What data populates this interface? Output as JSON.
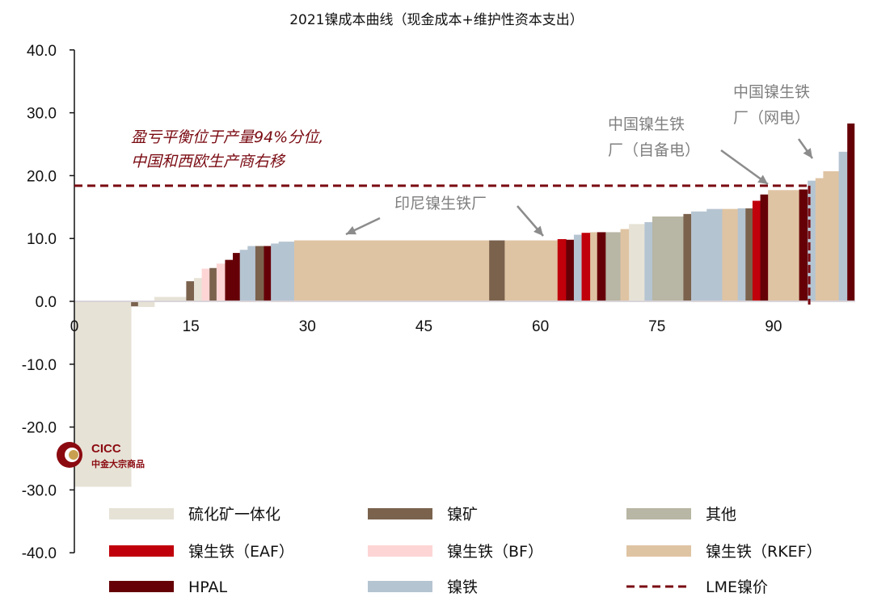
{
  "chart_data": {
    "type": "bar",
    "subtype": "variable-width cost curve",
    "title": "2021镍成本曲线（现金成本+维护性资本支出）",
    "xlim": [
      0,
      100.5
    ],
    "ylim": [
      -40,
      40
    ],
    "x_ticks": [
      "0",
      "15",
      "30",
      "45",
      "60",
      "75",
      "90"
    ],
    "x_tick_values": [
      0,
      15,
      30,
      45,
      60,
      75,
      90
    ],
    "y_ticks": [
      "40.0",
      "30.0",
      "20.0",
      "10.0",
      "0.0",
      "-10.0",
      "-20.0",
      "-30.0",
      "-40.0"
    ],
    "y_tick_values": [
      40,
      30,
      20,
      10,
      0,
      -10,
      -20,
      -30,
      -40
    ],
    "grid": false,
    "legend_placement": "bottom",
    "categories": {
      "sulfide": {
        "label": "硫化矿一体化",
        "color": "#e6e2d6"
      },
      "ore": {
        "label": "镍矿",
        "color": "#7a624d"
      },
      "other": {
        "label": "其他",
        "color": "#b8b6a4"
      },
      "eaf": {
        "label": "镍生铁（EAF）",
        "color": "#c0000b"
      },
      "bf": {
        "label": "镍生铁（BF）",
        "color": "#fdd5d5"
      },
      "rkef": {
        "label": "镍生铁（RKEF）",
        "color": "#dfc4a3"
      },
      "hpal": {
        "label": "HPAL",
        "color": "#660007"
      },
      "fe": {
        "label": "镍铁",
        "color": "#b5c4d1"
      }
    },
    "legend_order": [
      "sulfide",
      "ore",
      "other",
      "eaf",
      "bf",
      "rkef",
      "hpal",
      "fe",
      "lme"
    ],
    "lme": {
      "label": "LME镍价",
      "value": 18.4,
      "color": "#7a0a12"
    },
    "breakeven_percentile": 94,
    "bars": [
      [
        0,
        7.3,
        -29.5,
        "sulfide"
      ],
      [
        7.3,
        8.2,
        -0.8,
        "ore"
      ],
      [
        8.2,
        10.3,
        -0.9,
        "sulfide"
      ],
      [
        10.3,
        14.4,
        0.7,
        "sulfide"
      ],
      [
        14.4,
        15.4,
        3.2,
        "ore"
      ],
      [
        15.4,
        16.4,
        3.7,
        "sulfide"
      ],
      [
        16.4,
        17.4,
        5.2,
        "bf"
      ],
      [
        17.4,
        18.3,
        5.3,
        "ore"
      ],
      [
        18.3,
        19.4,
        6.0,
        "bf"
      ],
      [
        19.4,
        20.4,
        6.6,
        "hpal"
      ],
      [
        20.4,
        21.3,
        7.7,
        "hpal"
      ],
      [
        21.3,
        22.3,
        8.2,
        "fe"
      ],
      [
        22.3,
        23.3,
        8.8,
        "fe"
      ],
      [
        23.3,
        24.4,
        8.8,
        "ore"
      ],
      [
        24.4,
        25.3,
        8.8,
        "hpal"
      ],
      [
        25.3,
        26.3,
        9.2,
        "fe"
      ],
      [
        26.3,
        28.3,
        9.5,
        "fe"
      ],
      [
        28.3,
        53.4,
        9.7,
        "rkef"
      ],
      [
        53.4,
        55.4,
        9.7,
        "ore"
      ],
      [
        55.4,
        62.2,
        9.7,
        "rkef"
      ],
      [
        62.2,
        63.3,
        9.9,
        "eaf"
      ],
      [
        63.3,
        64.3,
        9.8,
        "hpal"
      ],
      [
        64.3,
        65.3,
        10.6,
        "fe"
      ],
      [
        65.3,
        66.4,
        10.9,
        "eaf"
      ],
      [
        66.4,
        67.3,
        11.0,
        "rkef"
      ],
      [
        67.3,
        68.4,
        11.0,
        "hpal"
      ],
      [
        68.4,
        70.3,
        11.0,
        "other"
      ],
      [
        70.3,
        71.4,
        11.5,
        "rkef"
      ],
      [
        71.4,
        73.4,
        12.3,
        "sulfide"
      ],
      [
        73.4,
        74.4,
        12.6,
        "fe"
      ],
      [
        74.4,
        78.4,
        13.5,
        "other"
      ],
      [
        78.4,
        79.4,
        13.9,
        "ore"
      ],
      [
        79.4,
        81.4,
        14.3,
        "fe"
      ],
      [
        81.4,
        83.4,
        14.7,
        "fe"
      ],
      [
        83.4,
        85.4,
        14.7,
        "rkef"
      ],
      [
        85.4,
        86.4,
        14.8,
        "fe"
      ],
      [
        86.4,
        87.3,
        14.8,
        "ore"
      ],
      [
        87.3,
        88.3,
        16.0,
        "eaf"
      ],
      [
        88.3,
        89.3,
        17.0,
        "hpal"
      ],
      [
        89.3,
        93.3,
        17.7,
        "rkef"
      ],
      [
        93.3,
        94.4,
        17.8,
        "hpal"
      ],
      [
        94.4,
        95.4,
        19.2,
        "fe"
      ],
      [
        95.4,
        96.4,
        19.6,
        "rkef"
      ],
      [
        96.4,
        98.4,
        20.7,
        "rkef"
      ],
      [
        98.4,
        99.5,
        23.8,
        "fe"
      ],
      [
        99.5,
        100.4,
        28.3,
        "hpal"
      ]
    ],
    "annotations": {
      "breakeven_line1": "盈亏平衡位于产量94%分位,",
      "breakeven_line2": "中国和西欧生产商右移",
      "indonesia": "印尼镍生铁厂",
      "china_self_line1": "中国镍生铁",
      "china_self_line2": "厂（自备电）",
      "china_grid_line1": "中国镍生铁",
      "china_grid_line2": "厂（网电）"
    }
  },
  "watermark": {
    "brand": "CICC",
    "subtitle": "中金大宗商品",
    "color": "#8b0a10",
    "gold": "#c9a050"
  }
}
